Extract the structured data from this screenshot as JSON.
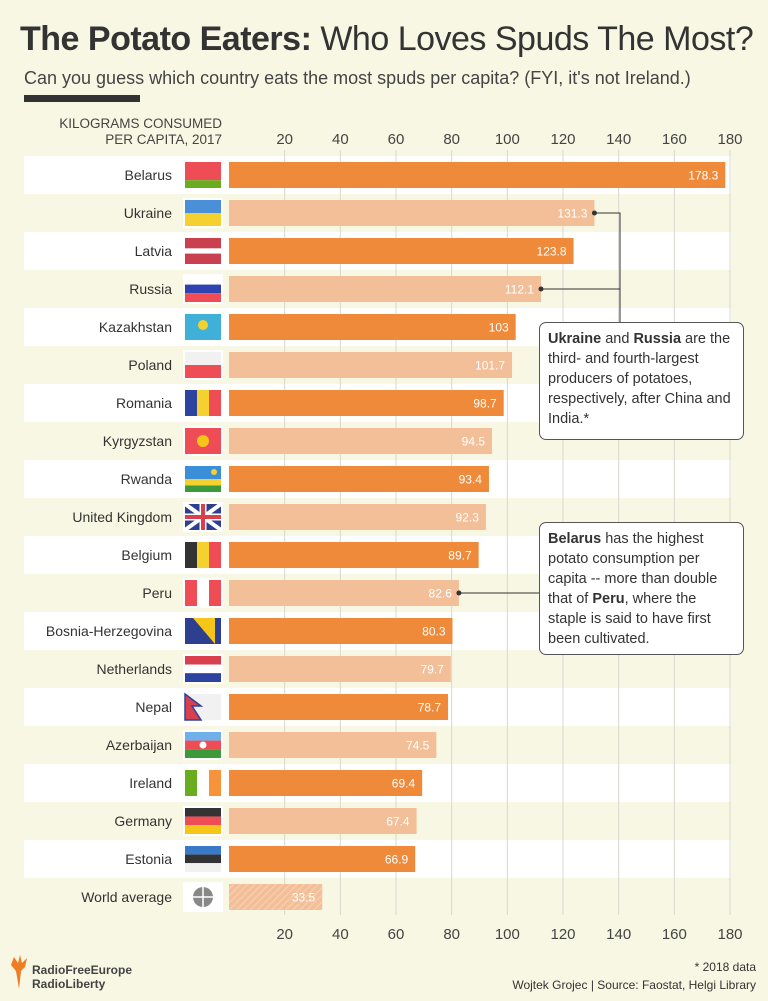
{
  "header": {
    "title_bold": "The Potato Eaters:",
    "title_light": "Who Loves Spuds The Most?",
    "subtitle": "Can you guess which country eats the most spuds per capita? (FYI, it's not Ireland.)"
  },
  "chart_data": {
    "type": "bar",
    "orientation": "horizontal",
    "ylabel": "KILOGRAMS CONSUMED PER CAPITA, 2017",
    "xlim": [
      0,
      180
    ],
    "xticks": [
      20,
      40,
      60,
      80,
      100,
      120,
      140,
      160,
      180
    ],
    "grid": true,
    "categories": [
      "Belarus",
      "Ukraine",
      "Latvia",
      "Russia",
      "Kazakhstan",
      "Poland",
      "Romania",
      "Kyrgyzstan",
      "Rwanda",
      "United Kingdom",
      "Belgium",
      "Peru",
      "Bosnia-Herzegovina",
      "Netherlands",
      "Nepal",
      "Azerbaijan",
      "Ireland",
      "Germany",
      "Estonia",
      "World average"
    ],
    "values": [
      178.3,
      131.3,
      123.8,
      112.1,
      103,
      101.7,
      98.7,
      94.5,
      93.4,
      92.3,
      89.7,
      82.6,
      80.3,
      79.7,
      78.7,
      74.5,
      69.4,
      67.4,
      66.9,
      33.5
    ],
    "value_labels": [
      "178.3",
      "131.3",
      "123.8",
      "112.1",
      "103",
      "101.7",
      "98.7",
      "94.5",
      "93.4",
      "92.3",
      "89.7",
      "82.6",
      "80.3",
      "79.7",
      "78.7",
      "74.5",
      "69.4",
      "67.4",
      "66.9",
      "33.5"
    ],
    "colors": {
      "dark": "#ef8a3a",
      "light": "#f3bf98",
      "world": "#f3bf98"
    }
  },
  "annotations": [
    {
      "bold1": "Ukraine",
      "t1": " and ",
      "bold2": "Russia",
      "t2": " are the third- and fourth-largest producers of potatoes, respectively, after China and India.*"
    },
    {
      "bold1": "Belarus",
      "t1": " has the highest potato consumption per capita -- more than double that of ",
      "bold2": "Peru",
      "t2": ", where the staple is said to have first been cultivated."
    }
  ],
  "footer": {
    "logo_line1": "RadioFreeEurope",
    "logo_line2": "RadioLiberty",
    "note": "* 2018 data",
    "credit": "Wojtek Grojec | Source: Faostat, Helgi Library"
  }
}
